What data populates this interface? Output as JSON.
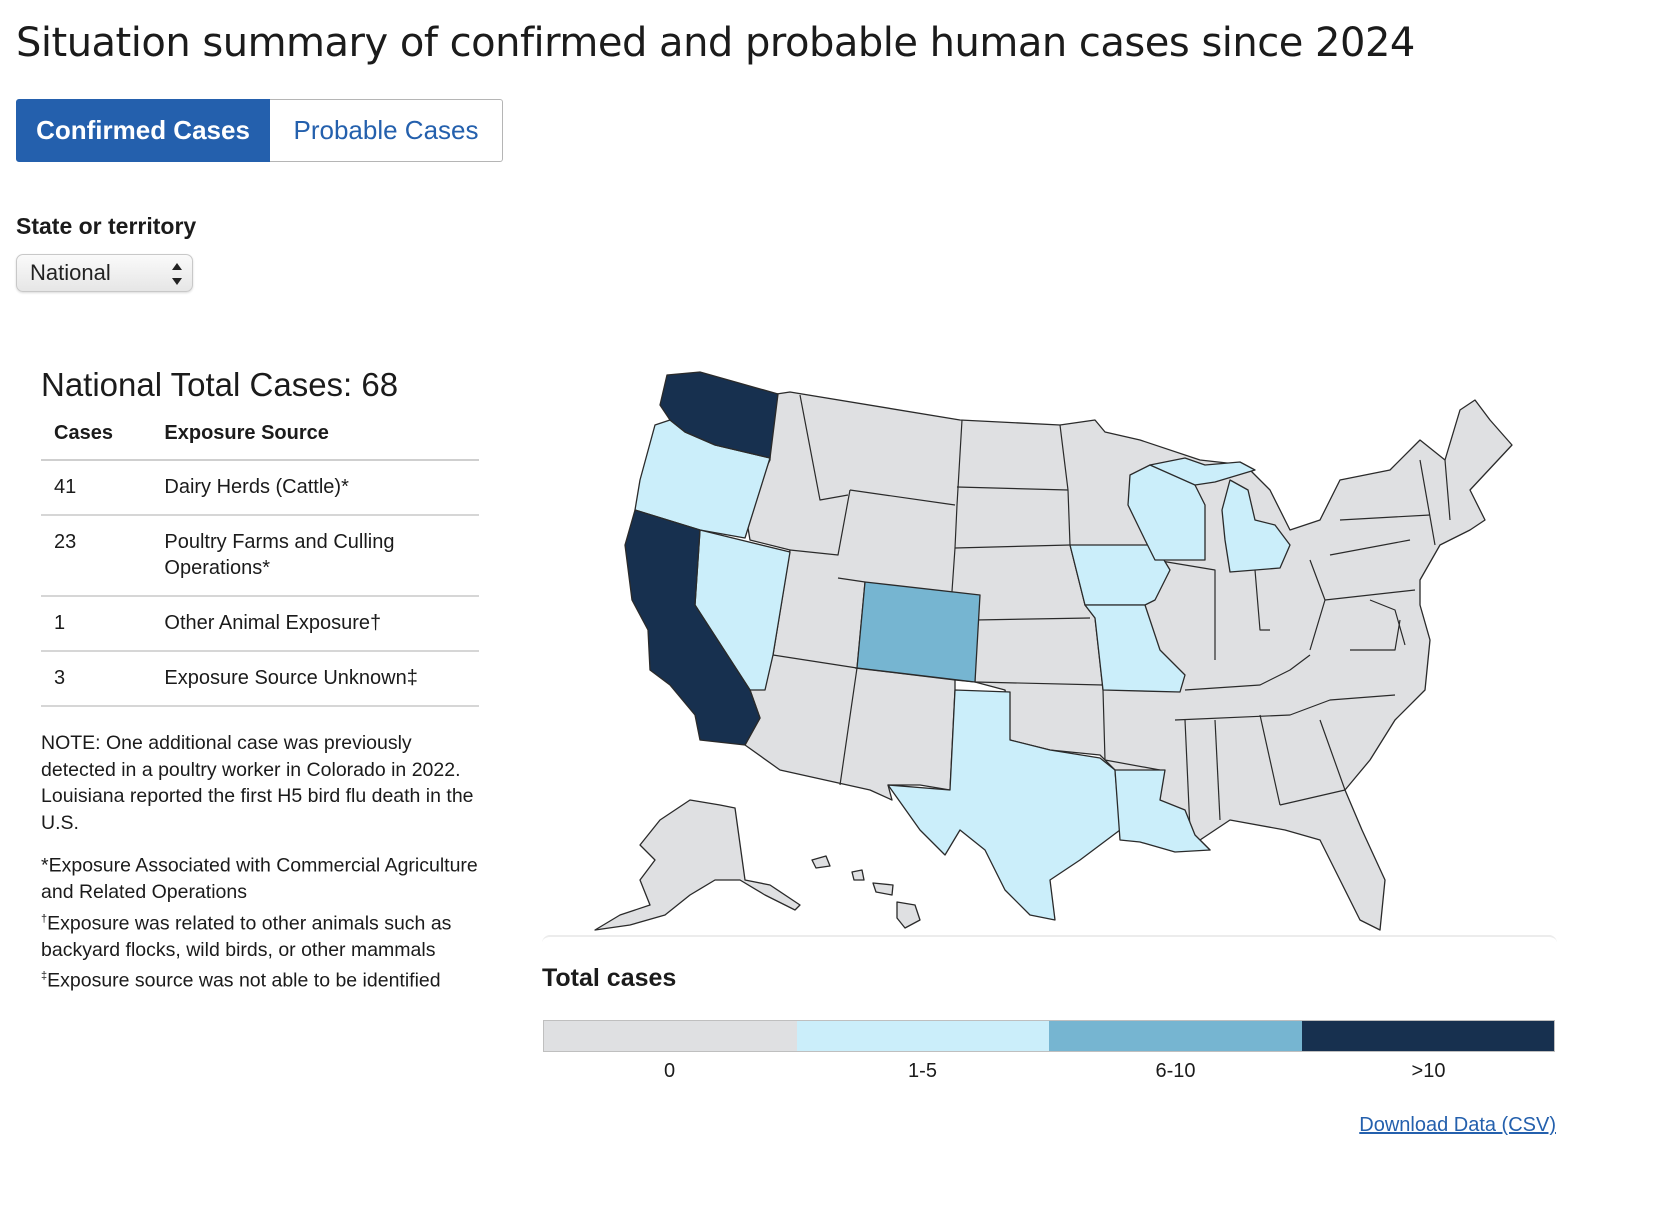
{
  "page_title": "Situation summary of confirmed and probable human cases since 2024",
  "tabs": [
    {
      "label": "Confirmed Cases",
      "active": true
    },
    {
      "label": "Probable Cases",
      "active": false
    }
  ],
  "state_select": {
    "label": "State or territory",
    "value": "National"
  },
  "summary": {
    "title": "National Total Cases: 68",
    "table": {
      "headers": [
        "Cases",
        "Exposure Source"
      ],
      "rows": [
        {
          "cases": "41",
          "source": "Dairy Herds (Cattle)*"
        },
        {
          "cases": "23",
          "source": "Poultry Farms and Culling Operations*"
        },
        {
          "cases": "1",
          "source": "Other Animal Exposure†"
        },
        {
          "cases": "3",
          "source": "Exposure Source Unknown‡"
        }
      ]
    },
    "note": "NOTE: One additional case was previously detected in a poultry worker in Colorado in 2022. Louisiana reported the first H5 bird flu death in the U.S.",
    "footnotes": [
      {
        "mark": "",
        "text": "*Exposure Associated with Commercial Agriculture and Related Operations"
      },
      {
        "mark": "†",
        "text": "Exposure was related to other animals such as backyard flocks, wild birds, or other mammals"
      },
      {
        "mark": "‡",
        "text": "Exposure source was not able to be identified"
      }
    ]
  },
  "map": {
    "categories": {
      "WA": ">10",
      "CA": ">10",
      "OR": "1-5",
      "NV": "1-5",
      "TX": "1-5",
      "IA": "1-5",
      "MO": "1-5",
      "WI": "1-5",
      "MI": "1-5",
      "LA": "1-5",
      "CO": "6-10",
      "others": "0"
    }
  },
  "legend": {
    "title": "Total cases",
    "items": [
      {
        "label": "0",
        "color": "#dfe0e2"
      },
      {
        "label": "1-5",
        "color": "#cbeefa"
      },
      {
        "label": "6-10",
        "color": "#76b5d1"
      },
      {
        "label": ">10",
        "color": "#17304f"
      }
    ]
  },
  "download_link": "Download Data (CSV)"
}
